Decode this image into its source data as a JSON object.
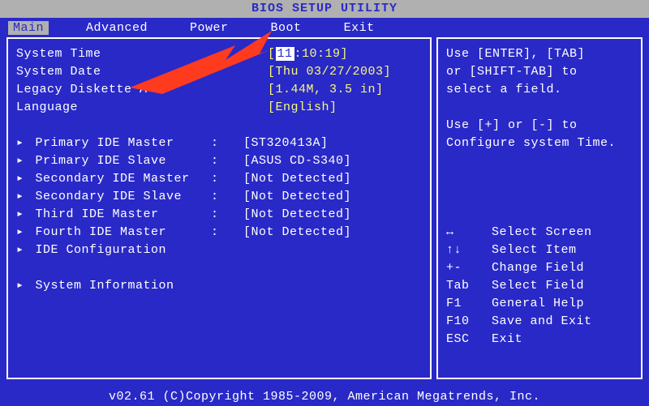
{
  "title": "BIOS SETUP UTILITY",
  "tabs": [
    "Main",
    "Advanced",
    "Power",
    "Boot",
    "Exit"
  ],
  "activeTab": 0,
  "rows": [
    {
      "label": "System Time",
      "value": "[11:10:19]",
      "highlightFirst": true
    },
    {
      "label": "System Date",
      "value": "[Thu 03/27/2003]"
    },
    {
      "label": "Legacy Diskette A",
      "value": "[1.44M, 3.5 in]"
    },
    {
      "label": "Language",
      "value": "[English]"
    }
  ],
  "ideRows": [
    {
      "label": "Primary IDE Master",
      "value": "[ST320413A]"
    },
    {
      "label": "Primary IDE Slave",
      "value": "[ASUS CD-S340]"
    },
    {
      "label": "Secondary IDE Master",
      "value": "[Not Detected]"
    },
    {
      "label": "Secondary IDE Slave",
      "value": "[Not Detected]"
    },
    {
      "label": "Third IDE Master",
      "value": "[Not Detected]"
    },
    {
      "label": "Fourth IDE Master",
      "value": "[Not Detected]"
    },
    {
      "label": "IDE Configuration",
      "value": ""
    }
  ],
  "infoRow": {
    "label": "System Information"
  },
  "help": {
    "l1": "Use [ENTER], [TAB]",
    "l2": "or [SHIFT-TAB] to",
    "l3": "select a field.",
    "l4": "Use [+] or [-] to",
    "l5": "Configure system Time."
  },
  "keys": [
    {
      "k": "↔",
      "d": "Select Screen"
    },
    {
      "k": "↑↓",
      "d": "Select Item"
    },
    {
      "k": "+-",
      "d": "Change Field"
    },
    {
      "k": "Tab",
      "d": "Select Field"
    },
    {
      "k": "F1",
      "d": "General Help"
    },
    {
      "k": "F10",
      "d": "Save and Exit"
    },
    {
      "k": "ESC",
      "d": "Exit"
    }
  ],
  "footer": "v02.61 (C)Copyright 1985-2009, American Megatrends, Inc.",
  "arrowColor": "#ff3b1f"
}
